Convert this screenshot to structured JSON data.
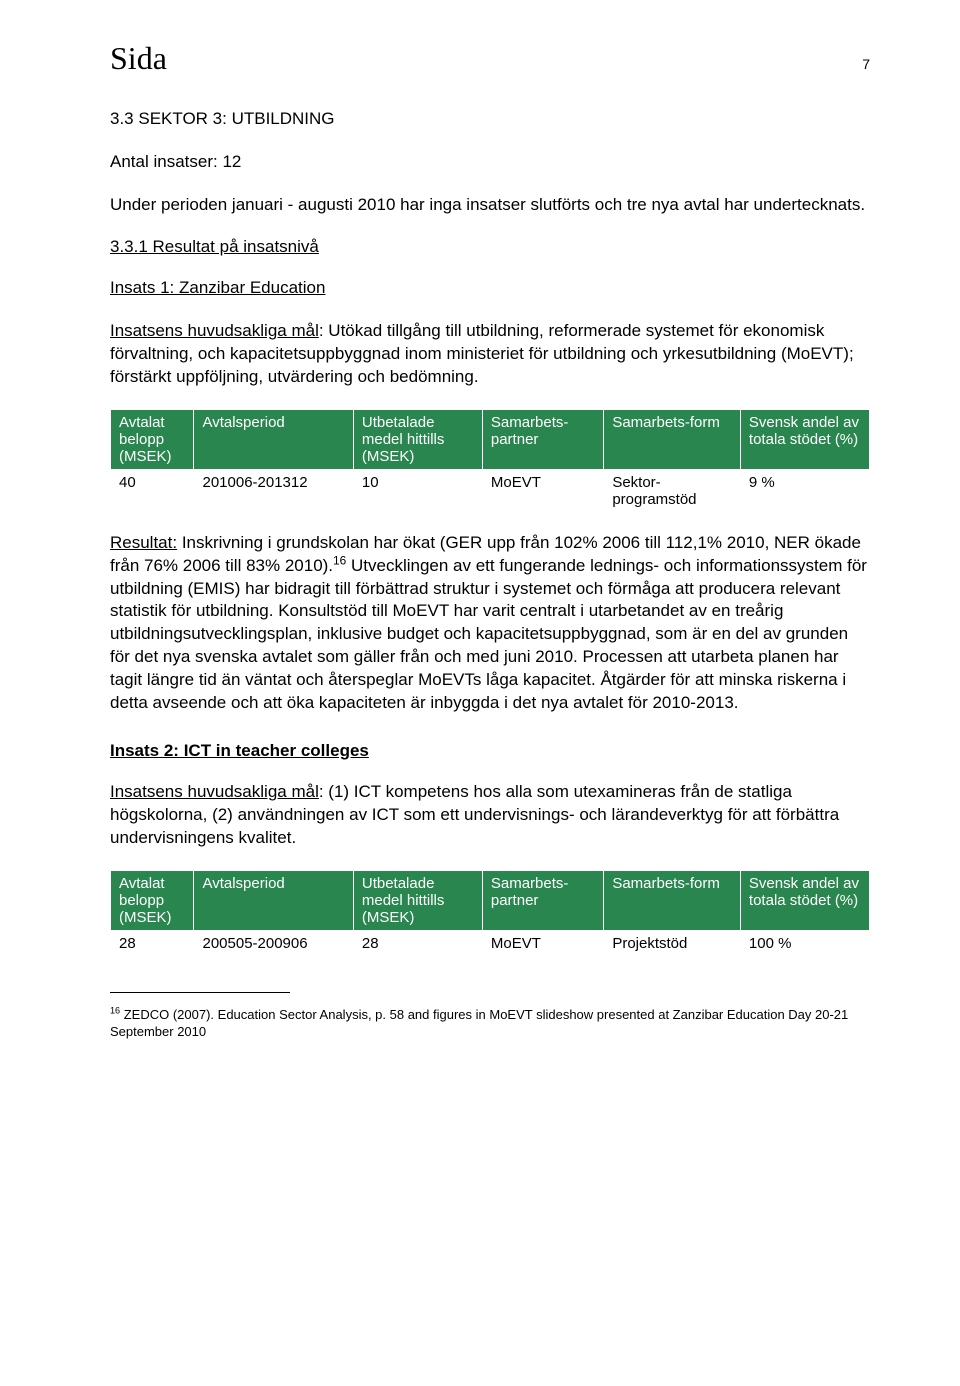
{
  "header": {
    "sida": "Sida",
    "page_number": "7"
  },
  "section_title": "3.3 SEKTOR 3: UTBILDNING",
  "antal": "Antal insatser: 12",
  "intro": "Under perioden januari - augusti 2010 har inga insatser slutförts och tre nya avtal har undertecknats.",
  "sub1": "3.3.1 Resultat på insatsnivå",
  "insats1_title": "Insats 1: Zanzibar Education",
  "insats1_goal_label": "Insatsens huvudsakliga mål",
  "insats1_goal_text": ": Utökad tillgång till utbildning, reformerade systemet för ekonomisk förvaltning, och kapacitetsuppbyggnad inom ministeriet för utbildning och yrkesutbildning (MoEVT); förstärkt uppföljning, utvärdering och bedömning.",
  "table_headers": {
    "c0": "Avtalat belopp (MSEK)",
    "c1": "Avtalsperiod",
    "c2": "Utbetalade medel hittills (MSEK)",
    "c3": "Samarbets-partner",
    "c4": "Samarbets-form",
    "c5": "Svensk andel av totala stödet (%)"
  },
  "table1": {
    "r0": {
      "c0": "40",
      "c1": "201006-201312",
      "c2": "10",
      "c3": "MoEVT",
      "c4": "Sektor-programstöd",
      "c5": "9 %"
    }
  },
  "resultat_label": "Resultat:",
  "resultat_text_a": " Inskrivning i grundskolan har ökat (GER upp från 102% 2006 till 112,1% 2010, NER ökade från 76% 2006 till 83% 2010).",
  "fn_ref": "16",
  "resultat_text_b": " Utvecklingen av ett fungerande lednings- och informationssystem för utbildning (EMIS) har bidragit till förbättrad struktur i systemet och förmåga att producera relevant statistik för utbildning. Konsultstöd till MoEVT har varit centralt i utarbetandet av en treårig utbildningsutvecklingsplan, inklusive budget och kapacitetsuppbyggnad, som är en del av grunden för det nya svenska avtalet som gäller från och med juni 2010. Processen att utarbeta planen har tagit längre tid än väntat och återspeglar MoEVTs låga kapacitet. Åtgärder för att minska riskerna i detta avseende och att öka kapaciteten är inbyggda i det nya avtalet för 2010-2013.",
  "insats2_title": "Insats 2: ICT in teacher colleges",
  "insats2_goal_label": "Insatsens huvudsakliga mål",
  "insats2_goal_text": ": (1) ICT kompetens hos alla som utexamineras från de statliga högskolorna, (2) användningen av ICT som ett undervisnings- och lärandeverktyg för att förbättra undervisningens kvalitet.",
  "table2": {
    "r0": {
      "c0": "28",
      "c1": "200505-200906",
      "c2": "28",
      "c3": "MoEVT",
      "c4": "Projektstöd",
      "c5": "100 %"
    }
  },
  "footnote": {
    "num": "16",
    "text": " ZEDCO (2007). Education Sector Analysis, p. 58 and figures in MoEVT slideshow presented at Zanzibar Education Day 20-21 September 2010"
  },
  "colors": {
    "table_header_bg": "#28864e",
    "table_header_fg": "#ffffff"
  }
}
